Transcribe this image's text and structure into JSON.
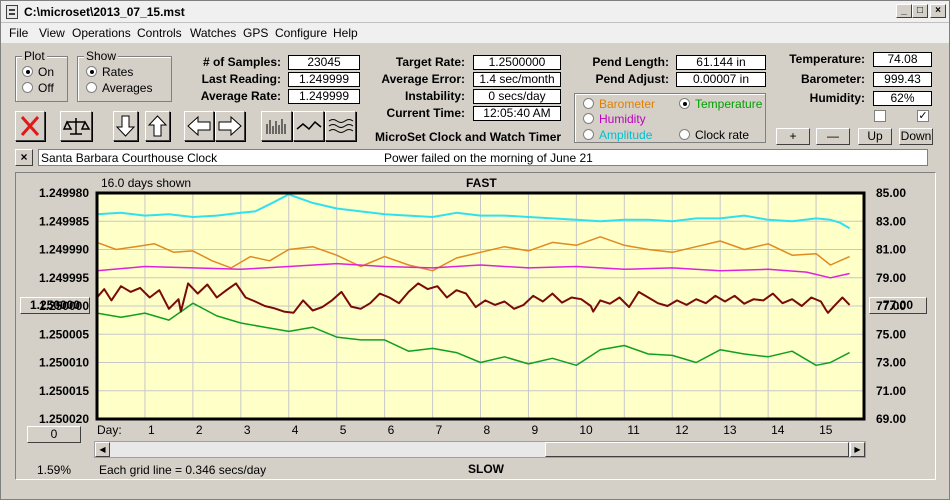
{
  "window": {
    "title": "C:\\microset\\2013_07_15.mst",
    "min_glyph": "_",
    "max_glyph": "□",
    "close_glyph": "×"
  },
  "menu": [
    "File",
    "View",
    "Operations",
    "Controls",
    "Watches",
    "GPS",
    "Configure",
    "Help"
  ],
  "plot_group": {
    "title": "Plot",
    "on_label": "On",
    "off_label": "Off",
    "selected": "On"
  },
  "show_group": {
    "title": "Show",
    "rates_label": "Rates",
    "averages_label": "Averages",
    "selected": "Rates"
  },
  "stats": {
    "samples_label": "# of Samples:",
    "samples_value": "23045",
    "last_reading_label": "Last Reading:",
    "last_reading_value": "1.249999",
    "average_rate_label": "Average Rate:",
    "average_rate_value": "1.249999"
  },
  "rates": {
    "target_rate_label": "Target Rate:",
    "target_rate_value": "1.2500000",
    "average_error_label": "Average Error:",
    "average_error_value": "1.4 sec/month",
    "instability_label": "Instability:",
    "instability_value": "0 secs/day",
    "current_time_label": "Current Time:",
    "current_time_value": "12:05:40 AM"
  },
  "pendulum": {
    "length_label": "Pend Length:",
    "length_value": "61.144 in",
    "adjust_label": "Pend Adjust:",
    "adjust_value": "0.00007 in"
  },
  "environment": {
    "temperature_label": "Temperature:",
    "temperature_value": "74.08",
    "barometer_label": "Barometer:",
    "barometer_value": "999.43",
    "humidity_label": "Humidity:",
    "humidity_value": "62%",
    "checkbox_left_checked": false,
    "checkbox_right_checked": true,
    "checkbox_right_glyph": "✓"
  },
  "aux_select": {
    "barometer": "Barometer",
    "temperature": "Temperature",
    "humidity": "Humidity",
    "amplitude": "Amplitude",
    "clock_rate": "Clock rate",
    "selected": "Temperature",
    "colors": {
      "barometer": "#e08000",
      "temperature": "#00a000",
      "humidity": "#c000c0",
      "amplitude": "#00c0d0"
    }
  },
  "scale_buttons": {
    "plus": "+",
    "minus": "—",
    "up": "Up",
    "down": "Down"
  },
  "title_caption": "MicroSet Clock and Watch Timer",
  "note": {
    "close_glyph": "×",
    "clock_name": "Santa Barbara Courthouse Clock",
    "message": "Power failed on the morning of June 21"
  },
  "chart_panel": {
    "days_shown": "16.0 days shown",
    "fast_label": "FAST",
    "slow_label": "SLOW",
    "left_marker_button": "1.250000",
    "right_marker_button": "77.00",
    "offset_button": "0",
    "percent": "1.59%",
    "grid_note": "Each grid line = 0.346 secs/day",
    "day_label": "Day:"
  },
  "chart_data": {
    "type": "line",
    "background": "#ffffc8",
    "grid": true,
    "x_axis": {
      "label": "Day:",
      "ticks": [
        1,
        2,
        3,
        4,
        5,
        6,
        7,
        8,
        9,
        10,
        11,
        12,
        13,
        14,
        15
      ],
      "range": [
        0,
        16
      ]
    },
    "y_left": {
      "ticks": [
        "1.249980",
        "1.249985",
        "1.249990",
        "1.249995",
        "1.250000",
        "1.250005",
        "1.250010",
        "1.250015",
        "1.250020"
      ],
      "range_top": 1.24998,
      "range_bottom": 1.25002
    },
    "y_right": {
      "ticks": [
        "85.00",
        "83.00",
        "81.00",
        "79.00",
        "77.00",
        "75.00",
        "73.00",
        "71.00",
        "69.00"
      ],
      "range_top": 85,
      "range_bottom": 69
    },
    "series": [
      {
        "key": "amplitude",
        "axis": "right",
        "color": "#30e0f0",
        "width": 2,
        "x": [
          0,
          0.5,
          1,
          1.5,
          2,
          2.5,
          3,
          3.3,
          3.6,
          4,
          4.5,
          5,
          5.5,
          6,
          6.5,
          7,
          7.5,
          8,
          8.5,
          9,
          9.5,
          10,
          10.5,
          11,
          11.5,
          12,
          12.5,
          13,
          13.5,
          14,
          14.5,
          15,
          15.3,
          15.5,
          15.7
        ],
        "y": [
          83.5,
          83.6,
          83.4,
          83.5,
          83.3,
          83.4,
          83.6,
          83.7,
          84.2,
          84.9,
          84.3,
          83.9,
          83.7,
          83.5,
          83.4,
          83.3,
          83.6,
          83.4,
          83.4,
          83.3,
          83.2,
          83.1,
          83.0,
          83.1,
          83.1,
          83.0,
          83.2,
          83.2,
          83.4,
          83.1,
          83.0,
          83.2,
          83.1,
          82.9,
          82.5
        ]
      },
      {
        "key": "barometer",
        "axis": "right",
        "color": "#e08a20",
        "width": 1.5,
        "x": [
          0,
          0.4,
          0.8,
          1.2,
          1.6,
          2,
          2.4,
          2.8,
          3.2,
          3.6,
          4,
          4.5,
          5,
          5.5,
          6,
          6.5,
          7,
          7.5,
          8,
          8.5,
          9,
          9.5,
          10,
          10.5,
          11,
          11.5,
          12,
          12.5,
          13,
          13.5,
          14,
          14.5,
          15,
          15.3,
          15.7
        ],
        "y": [
          81.5,
          81.0,
          81.2,
          81.4,
          80.8,
          80.9,
          80.2,
          79.7,
          80.5,
          80.2,
          81.0,
          81.2,
          80.6,
          79.8,
          80.5,
          79.9,
          79.5,
          80.4,
          80.8,
          81.2,
          80.9,
          81.5,
          81.3,
          81.9,
          81.3,
          81.0,
          80.8,
          81.2,
          81.6,
          81.0,
          81.4,
          80.6,
          80.7,
          79.9,
          80.5
        ]
      },
      {
        "key": "humidity",
        "axis": "right",
        "color": "#dd22dd",
        "width": 1.5,
        "x": [
          0,
          1,
          2,
          3,
          4,
          5,
          6,
          7,
          8,
          9,
          10,
          11,
          12,
          13,
          14,
          14.8,
          15.3,
          15.7
        ],
        "y": [
          79.5,
          79.8,
          79.7,
          79.6,
          79.8,
          80.0,
          79.8,
          79.7,
          79.9,
          79.7,
          79.8,
          79.6,
          79.7,
          79.5,
          79.6,
          79.4,
          79.0,
          79.3
        ]
      },
      {
        "key": "temperature",
        "axis": "right",
        "color": "#10a020",
        "width": 1.5,
        "x": [
          0,
          0.5,
          1,
          1.5,
          2,
          2.5,
          3,
          3.5,
          4,
          4.5,
          5,
          5.5,
          6,
          6.5,
          7,
          7.5,
          8,
          8.5,
          9,
          9.5,
          10,
          10.5,
          11,
          11.5,
          12,
          12.5,
          13,
          13.5,
          14,
          14.5,
          15,
          15.3,
          15.7
        ],
        "y": [
          76.5,
          76.2,
          76.5,
          76.0,
          77.2,
          76.3,
          75.8,
          75.5,
          75.2,
          75.5,
          74.8,
          74.6,
          74.6,
          73.8,
          74.0,
          73.7,
          73.0,
          73.4,
          72.9,
          73.3,
          72.8,
          73.9,
          74.2,
          73.6,
          73.5,
          73.0,
          73.9,
          73.6,
          73.4,
          73.8,
          72.8,
          73.0,
          73.7
        ]
      },
      {
        "key": "clock_rate",
        "axis": "left",
        "color": "#7a0a0a",
        "width": 2,
        "x": [
          0,
          0.15,
          0.3,
          0.5,
          0.7,
          0.9,
          1.1,
          1.3,
          1.5,
          1.7,
          1.75,
          1.9,
          2.1,
          2.3,
          2.5,
          2.7,
          2.9,
          3.1,
          3.3,
          3.5,
          3.7,
          3.9,
          4.1,
          4.3,
          4.5,
          4.7,
          4.9,
          5.1,
          5.3,
          5.5,
          5.7,
          5.9,
          6.1,
          6.3,
          6.5,
          6.7,
          6.9,
          7.1,
          7.3,
          7.5,
          7.7,
          7.9,
          8.1,
          8.3,
          8.5,
          8.7,
          8.9,
          9.1,
          9.3,
          9.5,
          9.7,
          9.9,
          10.1,
          10.3,
          10.35,
          10.5,
          10.7,
          10.9,
          11.1,
          11.3,
          11.5,
          11.7,
          11.9,
          12.1,
          12.3,
          12.5,
          12.7,
          12.9,
          13.1,
          13.3,
          13.5,
          13.7,
          13.9,
          14.1,
          14.3,
          14.5,
          14.7,
          14.9,
          15.1,
          15.2,
          15.25,
          15.4,
          15.55,
          15.7
        ],
        "y": [
          1.2499985,
          1.249997,
          1.249999,
          1.2499965,
          1.2499975,
          1.2499968,
          1.2499985,
          1.2499972,
          1.2500005,
          1.2499988,
          1.250001,
          1.249996,
          1.2499978,
          1.2499962,
          1.2499985,
          1.2499972,
          1.249996,
          1.2499985,
          1.2499992,
          1.25,
          1.2500004,
          1.250001,
          1.2500012,
          1.249999,
          1.2500008,
          1.2500002,
          1.249999,
          1.2499975,
          1.2500001,
          1.2500005,
          1.2499995,
          1.2499978,
          1.2499985,
          1.2499995,
          1.2499975,
          1.249996,
          1.249997,
          1.2499965,
          1.2499985,
          1.2499972,
          1.2499978,
          1.2500002,
          1.249999,
          1.2499998,
          1.2499992,
          1.2500005,
          1.2499998,
          1.2499982,
          1.2499992,
          1.2499978,
          1.2499994,
          1.2499985,
          1.2499988,
          1.25,
          1.250001,
          1.249999,
          1.2499996,
          1.2499985,
          1.2500002,
          1.2499975,
          1.2499985,
          1.2499995,
          1.25,
          1.249999,
          1.2499998,
          1.2499988,
          1.2499995,
          1.2499982,
          1.2499992,
          1.2499982,
          1.2499996,
          1.2499988,
          1.249999,
          1.2499978,
          1.2499995,
          1.2499988,
          1.25,
          1.2499985,
          1.2499992,
          1.2500006,
          1.2500012,
          1.2499998,
          1.2499985,
          1.2499998
        ]
      }
    ]
  }
}
